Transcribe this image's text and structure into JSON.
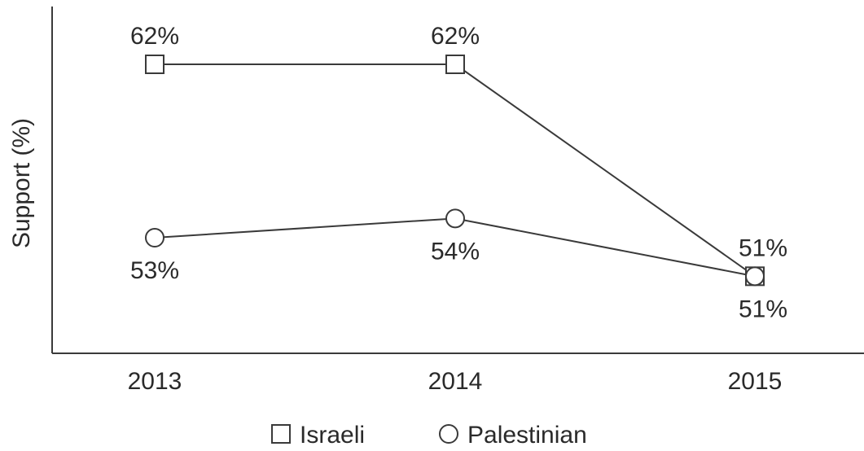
{
  "chart_data": {
    "type": "line",
    "title": "",
    "xlabel": "",
    "ylabel": "Support (%)",
    "categories": [
      "2013",
      "2014",
      "2015"
    ],
    "ylim": [
      47,
      65
    ],
    "grid": false,
    "legend_position": "bottom",
    "series": [
      {
        "name": "Israeli",
        "marker": "square",
        "values": [
          62,
          62,
          51
        ],
        "labels": [
          "62%",
          "62%",
          "51%"
        ],
        "label_position": "above"
      },
      {
        "name": "Palestinian",
        "marker": "circle",
        "values": [
          53,
          54,
          51
        ],
        "labels": [
          "53%",
          "54%",
          "51%"
        ],
        "label_position": "below"
      }
    ],
    "colors": {
      "line": "#3a3a3a",
      "marker_fill": "#ffffff",
      "text": "#2a2a2a"
    }
  }
}
